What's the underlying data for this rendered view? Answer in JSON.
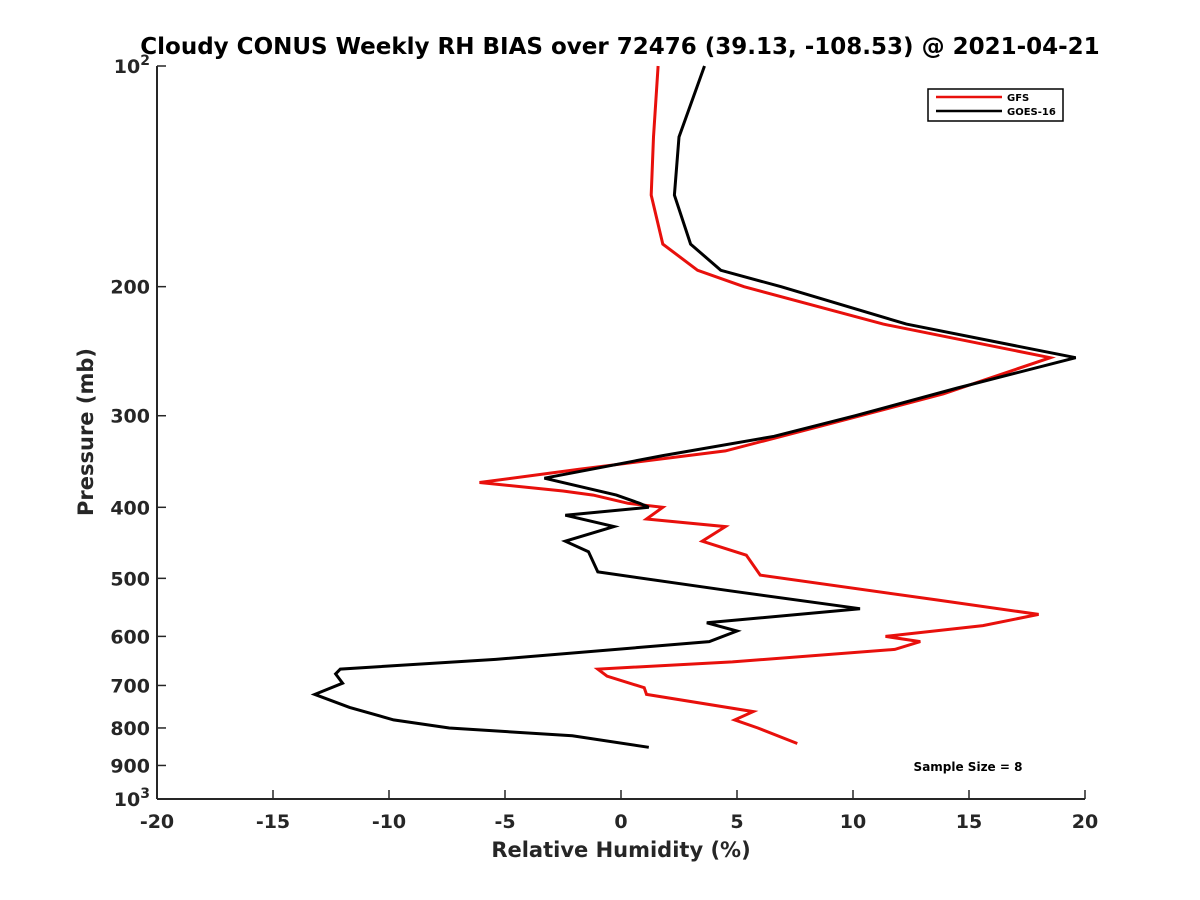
{
  "chart_data": {
    "type": "line",
    "title": "Cloudy CONUS Weekly RH BIAS over 72476 (39.13, -108.53) @ 2021-04-21",
    "xlabel": "Relative Humidity (%)",
    "ylabel": "Pressure (mb)",
    "xlim": [
      -20,
      20
    ],
    "ylim": [
      100,
      1000
    ],
    "y_scale": "log",
    "y_reversed": true,
    "grid": false,
    "legend_position": "top-right",
    "x_ticks": [
      "-20",
      "-15",
      "-10",
      "-5",
      "0",
      "5",
      "10",
      "15",
      "20"
    ],
    "y_ticks": [
      {
        "value": 100,
        "base": "10",
        "exp": "2"
      },
      {
        "value": 200,
        "label": "200"
      },
      {
        "value": 300,
        "label": "300"
      },
      {
        "value": 400,
        "label": "400"
      },
      {
        "value": 500,
        "label": "500"
      },
      {
        "value": 600,
        "label": "600"
      },
      {
        "value": 700,
        "label": "700"
      },
      {
        "value": 800,
        "label": "800"
      },
      {
        "value": 900,
        "label": "900"
      },
      {
        "value": 1000,
        "base": "10",
        "exp": "3"
      }
    ],
    "annotation": "Sample Size = 8",
    "series": [
      {
        "name": "GFS",
        "color": "#e8100c",
        "points": [
          [
            1.6,
            100
          ],
          [
            1.4,
            125
          ],
          [
            1.3,
            150
          ],
          [
            1.8,
            175
          ],
          [
            3.3,
            190
          ],
          [
            5.3,
            200
          ],
          [
            11.3,
            225
          ],
          [
            18.5,
            250
          ],
          [
            13.9,
            280
          ],
          [
            8.6,
            310
          ],
          [
            4.5,
            335
          ],
          [
            -1.8,
            355
          ],
          [
            -6.1,
            370
          ],
          [
            -2.5,
            380
          ],
          [
            -1.2,
            385
          ],
          [
            0.3,
            395
          ],
          [
            1.8,
            400
          ],
          [
            1.1,
            415
          ],
          [
            4.5,
            425
          ],
          [
            3.5,
            445
          ],
          [
            5.4,
            465
          ],
          [
            6.0,
            495
          ],
          [
            13.6,
            535
          ],
          [
            18.0,
            560
          ],
          [
            15.6,
            580
          ],
          [
            11.4,
            600
          ],
          [
            12.9,
            610
          ],
          [
            11.8,
            625
          ],
          [
            4.8,
            650
          ],
          [
            -1.0,
            665
          ],
          [
            -0.6,
            680
          ],
          [
            1.0,
            705
          ],
          [
            1.1,
            720
          ],
          [
            5.7,
            760
          ],
          [
            4.9,
            780
          ],
          [
            5.9,
            800
          ],
          [
            7.6,
            840
          ]
        ]
      },
      {
        "name": "GOES-16",
        "color": "#000000",
        "points": [
          [
            3.6,
            100
          ],
          [
            2.5,
            125
          ],
          [
            2.3,
            150
          ],
          [
            3.0,
            175
          ],
          [
            4.3,
            190
          ],
          [
            6.9,
            200
          ],
          [
            12.3,
            225
          ],
          [
            19.6,
            250
          ],
          [
            14.5,
            275
          ],
          [
            10.1,
            300
          ],
          [
            6.6,
            320
          ],
          [
            1.8,
            340
          ],
          [
            -3.3,
            365
          ],
          [
            -0.2,
            385
          ],
          [
            0.8,
            395
          ],
          [
            1.2,
            400
          ],
          [
            -2.4,
            410
          ],
          [
            -0.3,
            425
          ],
          [
            -2.4,
            445
          ],
          [
            -1.4,
            460
          ],
          [
            -1.0,
            490
          ],
          [
            4.7,
            520
          ],
          [
            10.3,
            550
          ],
          [
            3.7,
            575
          ],
          [
            5.0,
            590
          ],
          [
            3.8,
            610
          ],
          [
            -5.4,
            645
          ],
          [
            -12.1,
            665
          ],
          [
            -12.3,
            675
          ],
          [
            -12.0,
            695
          ],
          [
            -13.2,
            720
          ],
          [
            -11.7,
            750
          ],
          [
            -9.8,
            780
          ],
          [
            -7.4,
            800
          ],
          [
            -2.1,
            820
          ],
          [
            1.2,
            850
          ]
        ]
      }
    ]
  }
}
